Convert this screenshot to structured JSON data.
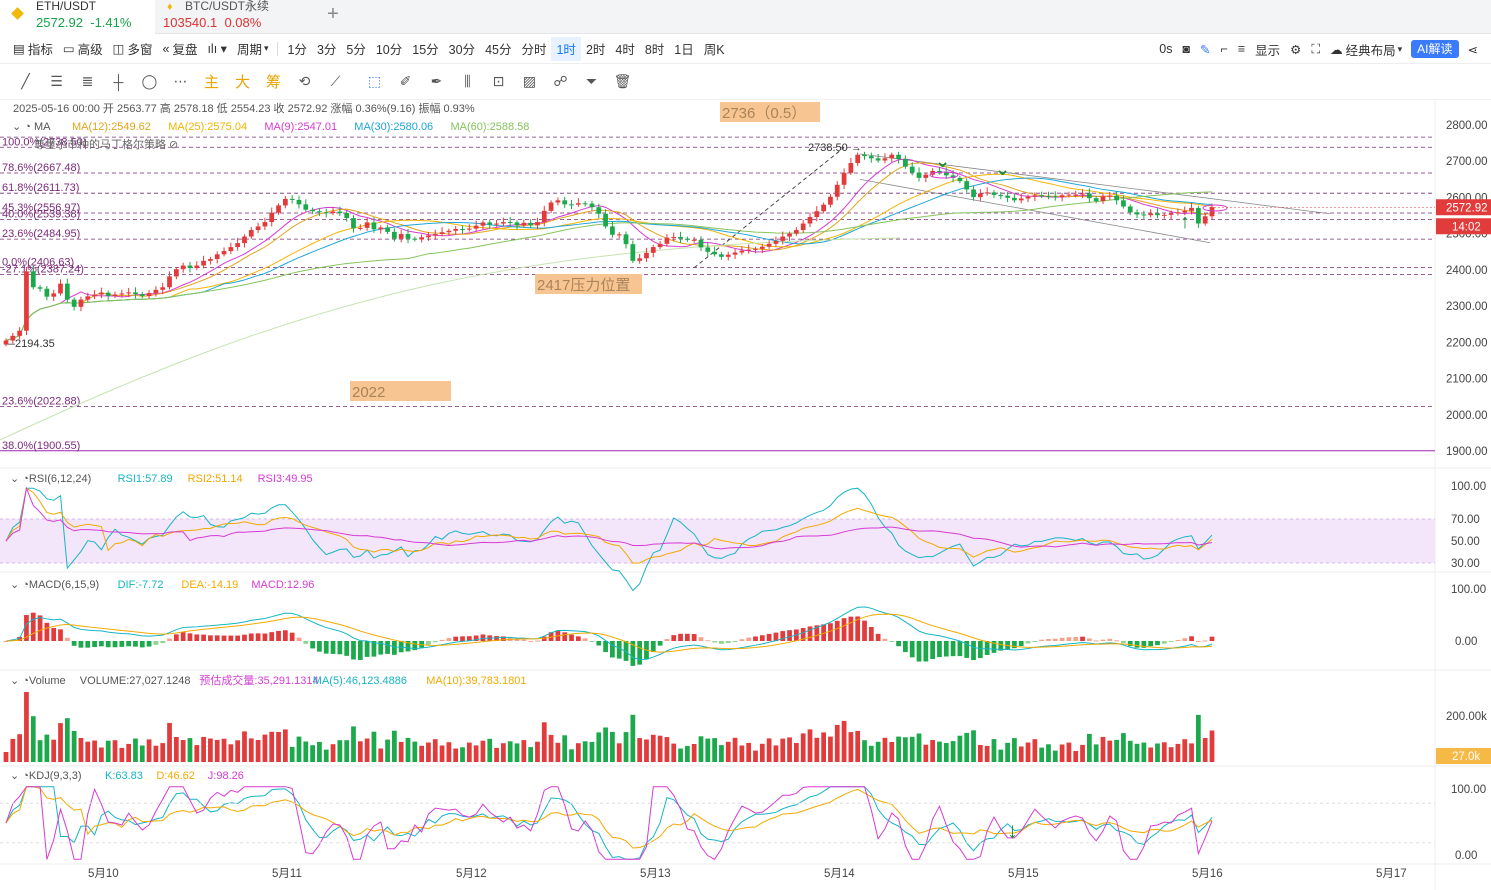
{
  "tabs": [
    {
      "symbol": "ETH/USDT",
      "price": "2572.92",
      "change": "-1.41%"
    },
    {
      "symbol": "BTC/USDT永续",
      "price": "103540.1",
      "change": "0.08%"
    }
  ],
  "toolbar": {
    "left": [
      "指标",
      "高级",
      "多窗",
      "复盘"
    ],
    "period_label": "周期",
    "periods": [
      "1分",
      "3分",
      "5分",
      "10分",
      "15分",
      "30分",
      "45分",
      "分时",
      "1时",
      "2时",
      "4时",
      "8时",
      "1日",
      "周K"
    ],
    "selected_period": "1时",
    "countdown": "0s",
    "display": "显示",
    "layout": "经典布局",
    "ai": "AI解读"
  },
  "draw_tools": [
    "主",
    "大",
    "筹"
  ],
  "legend": {
    "ohlc": "2025-05-16 00:00  开 2563.77  高 2578.18  低 2554.23  收 2572.92  涨幅 0.36%(9.16)  振幅 0.93%",
    "ma_title": "MA",
    "ma": [
      {
        "label": "MA(12):2549.62",
        "color": "#e2a41a"
      },
      {
        "label": "MA(25):2575.04",
        "color": "#f2b400"
      },
      {
        "label": "MA(9):2547.01",
        "color": "#d63bd3"
      },
      {
        "label": "MA(30):2580.06",
        "color": "#20a6d8"
      },
      {
        "label": "MA(60):2588.58",
        "color": "#86c45c"
      }
    ],
    "strategy": "尊重小市种的马丁格尔策略",
    "rsi": {
      "title": "RSI(6,12,24)",
      "items": [
        {
          "t": "RSI1:57.89",
          "c": "#16b4c4"
        },
        {
          "t": "RSI2:51.14",
          "c": "#f2a900"
        },
        {
          "t": "RSI3:49.95",
          "c": "#d63bd3"
        }
      ]
    },
    "macd": {
      "title": "MACD(6,15,9)",
      "items": [
        {
          "t": "DIF:-7.72",
          "c": "#16b4c4"
        },
        {
          "t": "DEA:-14.19",
          "c": "#f2a900"
        },
        {
          "t": "MACD:12.96",
          "c": "#d63bd3"
        }
      ]
    },
    "volume": {
      "title": "Volume",
      "items": [
        {
          "t": "VOLUME:27,027.1248",
          "c": "#555"
        },
        {
          "t": "预估成交量:35,291.1314",
          "c": "#d63bd3"
        },
        {
          "t": "MA(5):46,123.4886",
          "c": "#16b4c4"
        },
        {
          "t": "MA(10):39,783.1801",
          "c": "#f2a900"
        }
      ]
    },
    "kdj": {
      "title": "KDJ(9,3,3)",
      "items": [
        {
          "t": "K:63.83",
          "c": "#16b4c4"
        },
        {
          "t": "D:46.62",
          "c": "#f2a900"
        },
        {
          "t": "J:98.26",
          "c": "#d63bd3"
        }
      ]
    }
  },
  "fib_levels": [
    {
      "label": "100.0%(2738.50)",
      "value": 2738.5
    },
    {
      "label": "78.6%(2667.48)",
      "value": 2667.48
    },
    {
      "label": "61.8%(2611.73)",
      "value": 2611.73
    },
    {
      "label": "45.3%(2556.97)",
      "value": 2556.97
    },
    {
      "label": "40.0%(2539.38)",
      "value": 2539.38
    },
    {
      "label": "23.6%(2484.95)",
      "value": 2484.95
    },
    {
      "label": "0.0%(2406.63)",
      "value": 2406.63
    },
    {
      "label": "-27.1%(2387.24)",
      "value": 2387.24
    },
    {
      "label": "23.6%(2022.88)",
      "value": 2022.88
    },
    {
      "label": "38.0%(1900.55)",
      "value": 1900.55
    }
  ],
  "annotations": [
    {
      "text": "2736（0.5）",
      "value": 2736
    },
    {
      "text": "2417压力位置",
      "value": 2417
    },
    {
      "text": "2022",
      "value": 2022
    },
    {
      "text": "2738.50",
      "value": 2738.5
    },
    {
      "text": "2194.35",
      "value": 2194.35
    }
  ],
  "price_scale": [
    "2800.00",
    "2700.00",
    "2600.00",
    "2500.00",
    "2400.00",
    "2300.00",
    "2200.00",
    "2100.00",
    "2000.00",
    "1900.00"
  ],
  "current_price": "2572.92",
  "countdown_badge": "14:02",
  "rsi_scale": [
    "100.00",
    "70.00",
    "50.00",
    "30.00"
  ],
  "macd_scale": [
    "100.00",
    "0.00"
  ],
  "volume_scale": [
    "200.00k"
  ],
  "volume_badge": "27.0k",
  "kdj_scale": [
    "100.00",
    "0.00"
  ],
  "x_axis": [
    "5月10",
    "5月11",
    "5月12",
    "5月13",
    "5月14",
    "5月15",
    "5月16",
    "5月17"
  ],
  "chart_data": {
    "type": "candlestick",
    "interval": "1h",
    "title": "ETH/USDT",
    "x_ticks": [
      "5月10",
      "5月11",
      "5月12",
      "5月13",
      "5月14",
      "5月15",
      "5月16",
      "5月17"
    ],
    "ylim": [
      1880,
      2830
    ],
    "candles_close": [
      2205,
      2218,
      2232,
      2396,
      2352,
      2348,
      2326,
      2335,
      2362,
      2318,
      2298,
      2318,
      2327,
      2332,
      2337,
      2328,
      2332,
      2335,
      2338,
      2333,
      2328,
      2336,
      2345,
      2352,
      2382,
      2402,
      2412,
      2405,
      2412,
      2425,
      2430,
      2443,
      2452,
      2463,
      2474,
      2492,
      2510,
      2520,
      2532,
      2558,
      2578,
      2596,
      2593,
      2581,
      2566,
      2562,
      2559,
      2557,
      2561,
      2557,
      2543,
      2515,
      2516,
      2531,
      2512,
      2517,
      2505,
      2486,
      2499,
      2486,
      2484,
      2490,
      2495,
      2499,
      2504,
      2508,
      2513,
      2512,
      2514,
      2522,
      2531,
      2525,
      2528,
      2532,
      2531,
      2523,
      2530,
      2523,
      2532,
      2563,
      2586,
      2592,
      2581,
      2580,
      2584,
      2583,
      2573,
      2555,
      2520,
      2497,
      2498,
      2471,
      2425,
      2432,
      2447,
      2463,
      2472,
      2489,
      2491,
      2486,
      2483,
      2483,
      2462,
      2450,
      2443,
      2436,
      2442,
      2448,
      2453,
      2456,
      2458,
      2464,
      2472,
      2480,
      2492,
      2500,
      2510,
      2528,
      2546,
      2562,
      2580,
      2602,
      2635,
      2668,
      2695,
      2718,
      2714,
      2708,
      2702,
      2708,
      2718,
      2706,
      2685,
      2669,
      2654,
      2663,
      2673,
      2671,
      2661,
      2654,
      2645,
      2622,
      2601,
      2611,
      2614,
      2607,
      2605,
      2599,
      2592,
      2597,
      2602,
      2606,
      2604,
      2603,
      2601,
      2606,
      2608,
      2608,
      2611,
      2598,
      2590,
      2603,
      2605,
      2592,
      2575,
      2559,
      2553,
      2551,
      2556,
      2551,
      2552,
      2556,
      2559,
      2563,
      2571,
      2528,
      2548,
      2573
    ],
    "series": [
      {
        "name": "MA(12)",
        "last": 2549.62
      },
      {
        "name": "MA(25)",
        "last": 2575.04
      },
      {
        "name": "MA(9)",
        "last": 2547.01
      },
      {
        "name": "MA(30)",
        "last": 2580.06
      },
      {
        "name": "MA(60)",
        "last": 2588.58
      }
    ],
    "indicators": {
      "RSI1": 57.89,
      "RSI2": 51.14,
      "RSI3": 49.95,
      "DIF": -7.72,
      "DEA": -14.19,
      "MACD": 12.96,
      "VOLUME": 27027.1248,
      "K": 63.83,
      "D": 46.62,
      "J": 98.26
    }
  }
}
